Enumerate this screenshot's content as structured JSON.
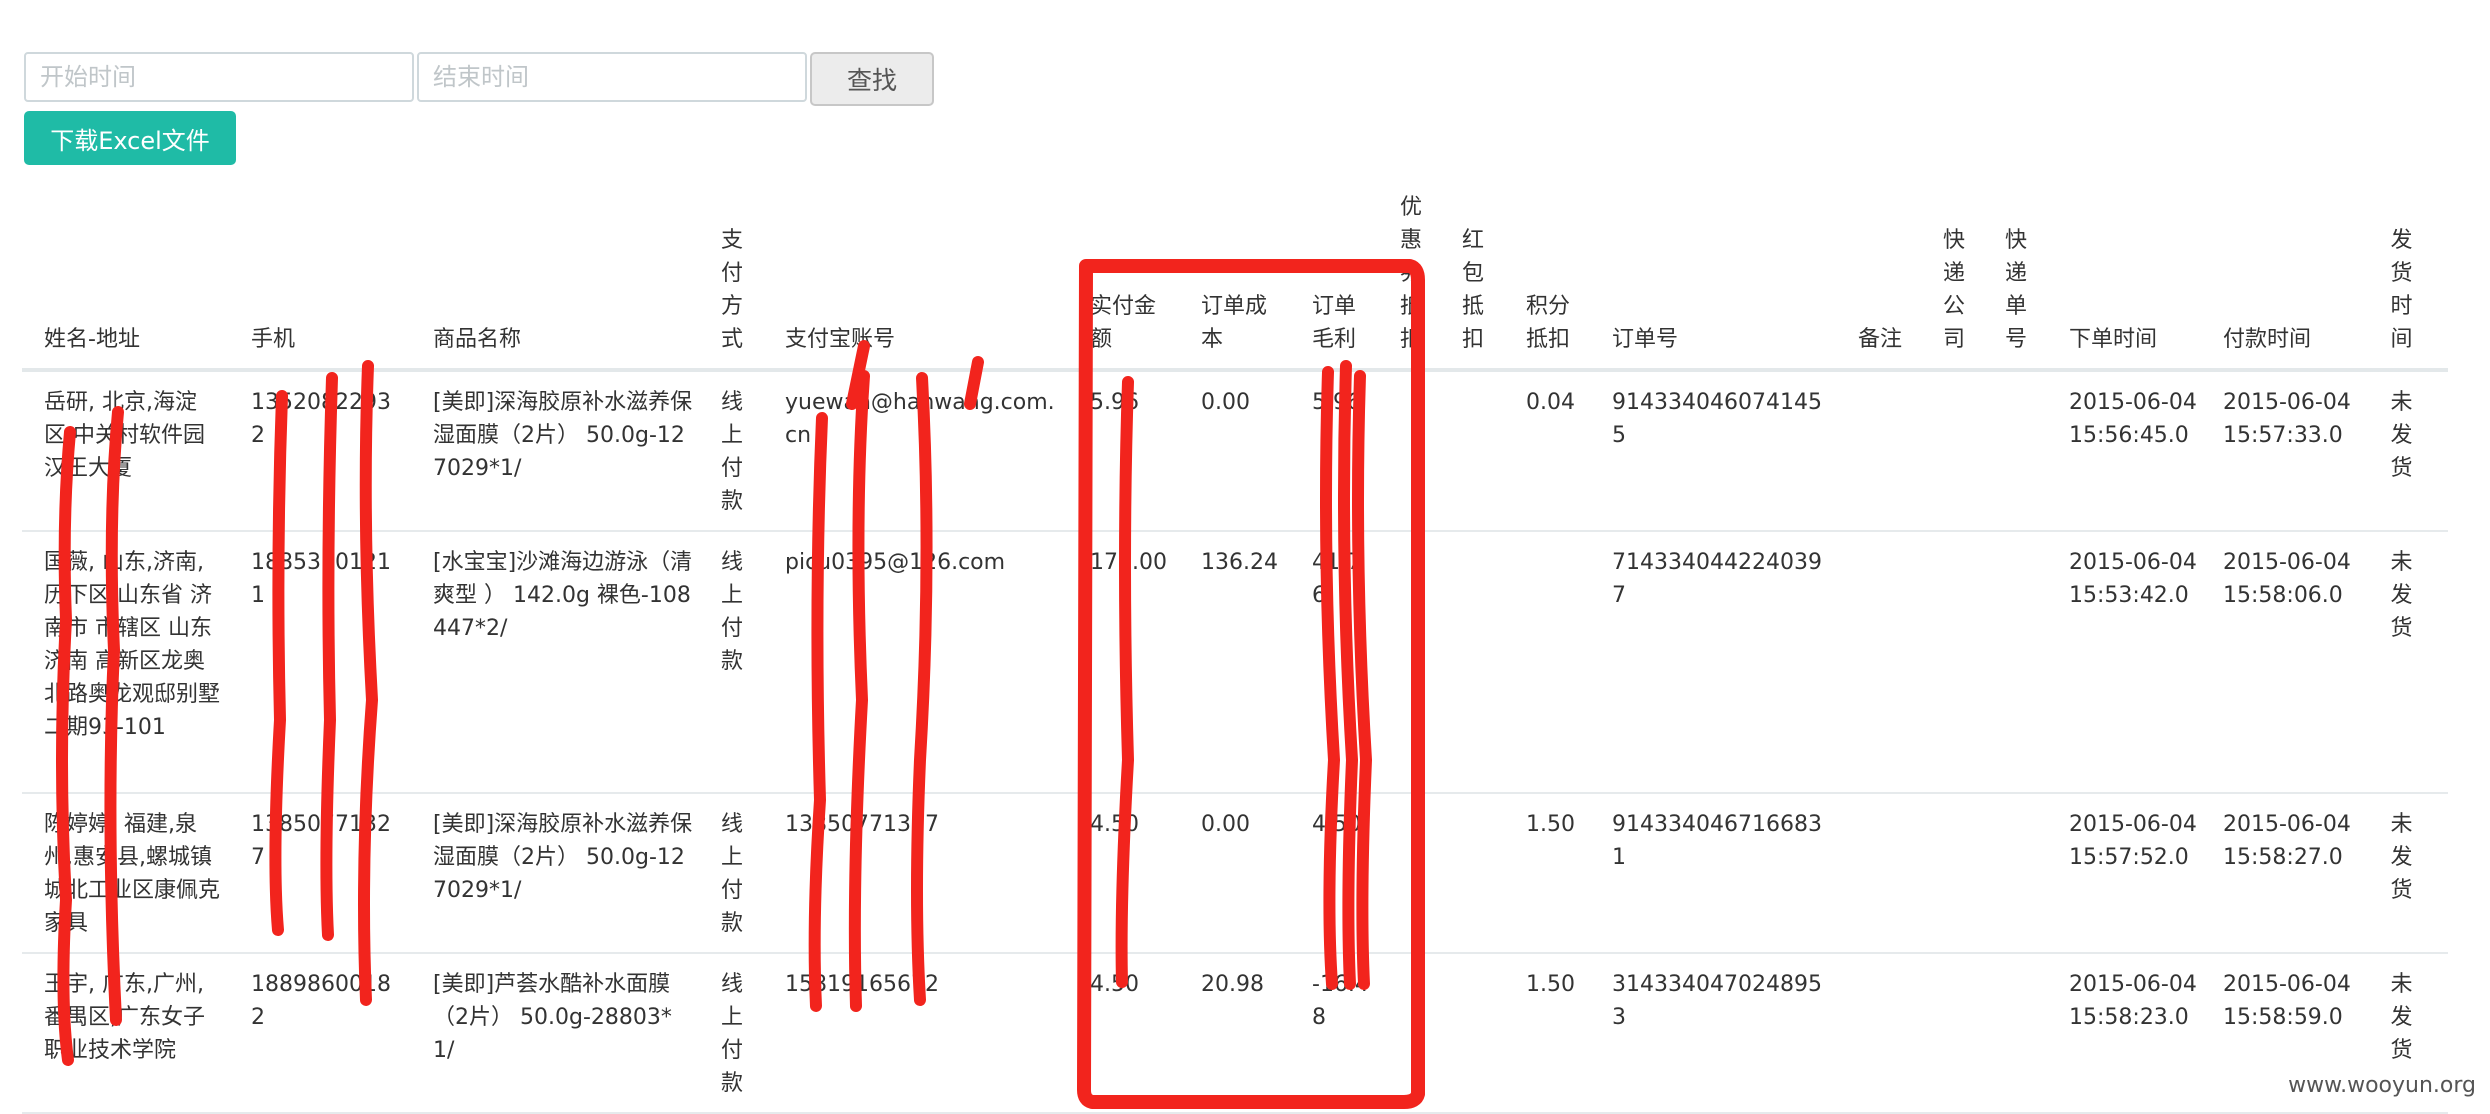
{
  "toolbar": {
    "start_placeholder": "开始时间",
    "end_placeholder": "结束时间",
    "search_label": "查找",
    "excel_label": "下载Excel文件"
  },
  "table": {
    "headers": [
      "姓名-地址",
      "手机",
      "商品名称",
      "支付方式",
      "支付宝账号",
      "实付金额",
      "订单成本",
      "订单毛利",
      "优惠券抵扣",
      "红包抵扣",
      "积分抵扣",
      "订单号",
      "备注",
      "快递公司",
      "快递单号",
      "下单时间",
      "付款时间",
      "发货时间"
    ],
    "rows": [
      [
        "岳研, 北京,海淀区,中关村软件园汉王大厦",
        "13520822932",
        "[美即]深海胶原补水滋养保湿面膜（2片） 50.0g-127029*1/",
        "线上付款",
        "yuewan@hanwang.com.cn",
        "5.96",
        "0.00",
        "5.96",
        "",
        "",
        "0.04",
        "9143340460741455",
        "",
        "",
        "",
        "2015-06-04 15:56:45.0",
        "2015-06-04 15:57:33.0",
        "未发货"
      ],
      [
        "国薇, 山东,济南,历下区,山东省 济南市 市辖区 山东济南 高新区龙奥北路奥龙观邸别墅二期93-101",
        "18853101211",
        "[水宝宝]沙滩海边游泳（清爽型 ） 142.0g 裸色-108447*2/",
        "线上付款",
        "picu0395@126.com",
        "178.00",
        "136.24",
        "41.76",
        "",
        "",
        "",
        "7143340442240397",
        "",
        "",
        "",
        "2015-06-04 15:53:42.0",
        "2015-06-04 15:58:06.0",
        "未发货"
      ],
      [
        "陈婷婷, 福建,泉州,惠安县,螺城镇城北工业区康佩克家具",
        "13850771327",
        "[美即]深海胶原补水滋养保湿面膜（2片） 50.0g-127029*1/",
        "线上付款",
        "13850771327",
        "4.50",
        "0.00",
        "4.50",
        "",
        "",
        "1.50",
        "9143340467166831",
        "",
        "",
        "",
        "2015-06-04 15:57:52.0",
        "2015-06-04 15:58:27.0",
        "未发货"
      ],
      [
        "王宇, 广东,广州,番禺区,广东女子职业技术学院",
        "18898600182",
        "[美即]芦荟水酷补水面膜（2片） 50.0g-28803*1/",
        "线上付款",
        "15819165672",
        "4.50",
        "20.98",
        "-16.48",
        "",
        "",
        "1.50",
        "3143340470248953",
        "",
        "",
        "",
        "2015-06-04 15:58:23.0",
        "2015-06-04 15:58:59.0",
        "未发货"
      ]
    ]
  },
  "watermark": "www.wooyun.org",
  "colors": {
    "accent": "#1fbba6",
    "annotation": "#f2241d"
  }
}
